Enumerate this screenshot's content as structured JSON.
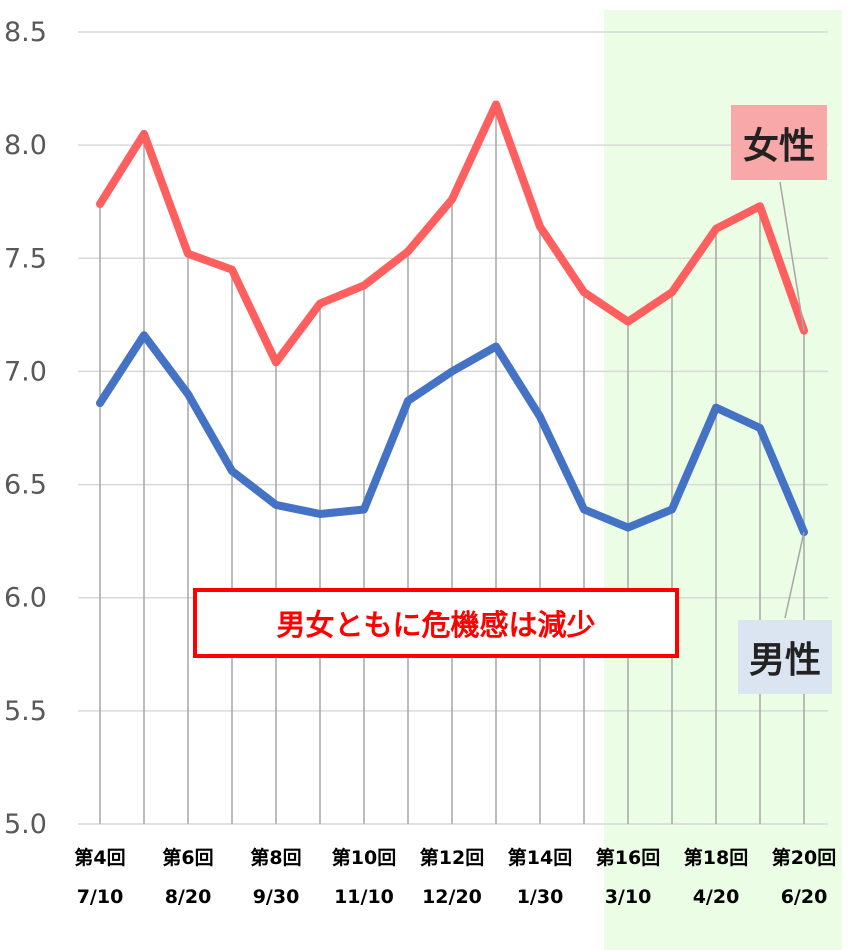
{
  "chart_data": {
    "type": "line",
    "x_round": [
      "第4回",
      "",
      "第6回",
      "",
      "第8回",
      "",
      "第10回",
      "",
      "第12回",
      "",
      "第14回",
      "",
      "第16回",
      "",
      "第18回",
      "",
      "第20回"
    ],
    "x_date": [
      "7/10",
      "",
      "8/20",
      "",
      "9/30",
      "",
      "11/10",
      "",
      "12/20",
      "",
      "1/30",
      "",
      "3/10",
      "",
      "4/20",
      "",
      "6/20"
    ],
    "yticks": [
      "8.5",
      "8.0",
      "7.5",
      "7.0",
      "6.5",
      "6.0",
      "5.5",
      "5.0"
    ],
    "ylim": [
      5.0,
      8.5
    ],
    "grid": true,
    "series": [
      {
        "name": "女性",
        "color": "#ff5f5f",
        "values": [
          7.74,
          8.05,
          7.52,
          7.45,
          7.04,
          7.3,
          7.38,
          7.53,
          7.76,
          8.18,
          7.64,
          7.35,
          7.22,
          7.35,
          7.63,
          7.73,
          7.18
        ]
      },
      {
        "name": "男性",
        "color": "#4472c4",
        "values": [
          6.86,
          7.16,
          6.9,
          6.56,
          6.41,
          6.37,
          6.39,
          6.87,
          7.0,
          7.11,
          6.8,
          6.39,
          6.31,
          6.39,
          6.84,
          6.75,
          6.29
        ]
      }
    ],
    "highlight_band": {
      "from_index": 11.5,
      "to_index": 16.5,
      "color": "#ebfde4"
    },
    "annotation": "男女ともに危機感は減少"
  }
}
